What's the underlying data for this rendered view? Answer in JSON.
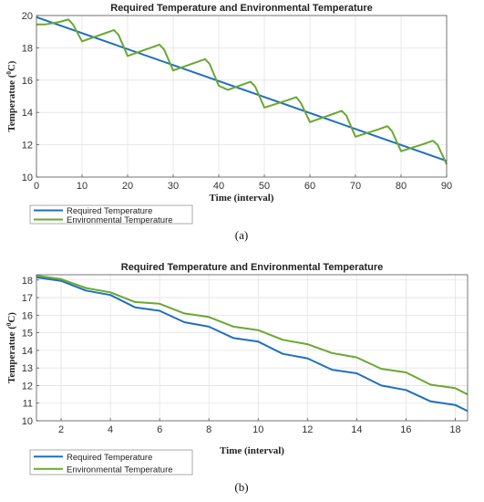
{
  "chart_data": [
    {
      "type": "line",
      "caption": "(a)",
      "title": "Required Temperature and Environmental Temperature",
      "xlabel": "Time (interval)",
      "ylabel_main": "Temperatue (",
      "ylabel_sup": "0",
      "ylabel_unit": "C)",
      "xlim": [
        0,
        90
      ],
      "ylim": [
        10,
        20
      ],
      "xticks": [
        0,
        10,
        20,
        30,
        40,
        50,
        60,
        70,
        80,
        90
      ],
      "yticks": [
        10,
        12,
        14,
        16,
        18,
        20
      ],
      "grid": true,
      "legend_position": "bottom-left-outside",
      "series": [
        {
          "name": "Required Temperature",
          "color": "#1f6fbf",
          "x": [
            0,
            90
          ],
          "y": [
            19.9,
            11.0
          ]
        },
        {
          "name": "Environmental Temperature",
          "color": "#6aa832",
          "x": [
            0,
            2,
            5,
            7,
            8,
            10,
            15,
            17,
            18,
            20,
            25,
            27,
            28,
            30,
            35,
            37,
            38,
            40,
            42,
            45,
            47,
            48,
            50,
            55,
            57,
            58,
            60,
            65,
            67,
            68,
            70,
            75,
            77,
            78,
            80,
            85,
            87,
            88,
            90
          ],
          "y": [
            19.45,
            19.45,
            19.6,
            19.75,
            19.45,
            18.4,
            18.9,
            19.1,
            18.8,
            17.5,
            18.0,
            18.2,
            17.9,
            16.6,
            17.1,
            17.3,
            17.0,
            15.65,
            15.4,
            15.7,
            15.9,
            15.6,
            14.3,
            14.75,
            14.95,
            14.6,
            13.4,
            13.9,
            14.1,
            13.8,
            12.5,
            12.95,
            13.15,
            12.85,
            11.6,
            12.05,
            12.25,
            12.0,
            10.8
          ]
        }
      ]
    },
    {
      "type": "line",
      "caption": "(b)",
      "title": "Required Temperature and Environmental Temperature",
      "xlabel": "Time (interval)",
      "ylabel_main": "Temperatue (",
      "ylabel_sup": "0",
      "ylabel_unit": "C)",
      "xlim": [
        1,
        18.5
      ],
      "ylim": [
        10,
        18.3
      ],
      "xticks": [
        2,
        4,
        6,
        8,
        10,
        12,
        14,
        16,
        18
      ],
      "yticks": [
        10,
        11,
        12,
        13,
        14,
        15,
        16,
        17,
        18
      ],
      "grid": true,
      "legend_position": "bottom-left-outside",
      "series": [
        {
          "name": "Required Temperature",
          "color": "#1f6fbf",
          "x": [
            1,
            2,
            3,
            4,
            5,
            6,
            7,
            8,
            9,
            10,
            11,
            12,
            13,
            14,
            15,
            16,
            17,
            18,
            18.5
          ],
          "y": [
            18.15,
            17.95,
            17.4,
            17.15,
            16.45,
            16.25,
            15.6,
            15.35,
            14.7,
            14.5,
            13.8,
            13.55,
            12.9,
            12.7,
            12.0,
            11.75,
            11.1,
            10.9,
            10.55
          ]
        },
        {
          "name": "Environmental Temperature",
          "color": "#6aa832",
          "x": [
            1,
            2,
            3,
            4,
            5,
            6,
            7,
            8,
            9,
            10,
            11,
            12,
            13,
            14,
            15,
            16,
            17,
            18,
            18.5
          ],
          "y": [
            18.25,
            18.05,
            17.55,
            17.3,
            16.75,
            16.65,
            16.1,
            15.9,
            15.35,
            15.15,
            14.6,
            14.35,
            13.85,
            13.6,
            12.95,
            12.75,
            12.05,
            11.85,
            11.5
          ]
        }
      ]
    }
  ]
}
